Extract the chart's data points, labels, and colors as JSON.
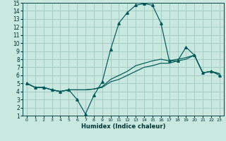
{
  "title": "",
  "xlabel": "Humidex (Indice chaleur)",
  "background_color": "#c8e8e0",
  "grid_color": "#a0c8c0",
  "line_color": "#005858",
  "xlim": [
    -0.5,
    23.5
  ],
  "ylim": [
    1,
    15
  ],
  "xticks": [
    0,
    1,
    2,
    3,
    4,
    5,
    6,
    7,
    8,
    9,
    10,
    11,
    12,
    13,
    14,
    15,
    16,
    17,
    18,
    19,
    20,
    21,
    22,
    23
  ],
  "yticks": [
    1,
    2,
    3,
    4,
    5,
    6,
    7,
    8,
    9,
    10,
    11,
    12,
    13,
    14,
    15
  ],
  "line1_x": [
    0,
    1,
    2,
    3,
    4,
    5,
    6,
    7,
    8,
    9,
    10,
    11,
    12,
    13,
    14,
    15,
    16,
    17,
    18,
    19,
    20,
    21,
    22,
    23
  ],
  "line1_y": [
    5.0,
    4.5,
    4.5,
    4.2,
    4.0,
    4.2,
    3.0,
    1.2,
    3.5,
    5.2,
    9.2,
    12.5,
    13.8,
    14.7,
    14.9,
    14.7,
    12.5,
    7.8,
    7.8,
    9.5,
    8.5,
    6.3,
    6.5,
    6.0
  ],
  "line2_x": [
    0,
    1,
    2,
    3,
    4,
    5,
    6,
    7,
    8,
    9,
    10,
    11,
    12,
    13,
    14,
    15,
    16,
    17,
    18,
    19,
    20,
    21,
    22,
    23
  ],
  "line2_y": [
    5.0,
    4.5,
    4.5,
    4.2,
    4.0,
    4.2,
    4.2,
    4.2,
    4.3,
    4.6,
    5.5,
    6.0,
    6.5,
    7.2,
    7.5,
    7.8,
    8.0,
    7.8,
    8.0,
    8.2,
    8.5,
    6.3,
    6.5,
    6.2
  ],
  "line3_x": [
    0,
    1,
    2,
    3,
    4,
    5,
    6,
    7,
    8,
    9,
    10,
    11,
    12,
    13,
    14,
    15,
    16,
    17,
    18,
    19,
    20,
    21,
    22,
    23
  ],
  "line3_y": [
    5.0,
    4.5,
    4.5,
    4.2,
    4.0,
    4.2,
    4.2,
    4.2,
    4.3,
    4.5,
    5.2,
    5.5,
    6.0,
    6.5,
    7.0,
    7.2,
    7.5,
    7.5,
    7.8,
    8.0,
    8.5,
    6.3,
    6.5,
    6.2
  ],
  "xlabel_fontsize": 6.0,
  "tick_fontsize_x": 4.5,
  "tick_fontsize_y": 5.5,
  "linewidth": 0.85,
  "marker": "^",
  "markersize": 2.5
}
